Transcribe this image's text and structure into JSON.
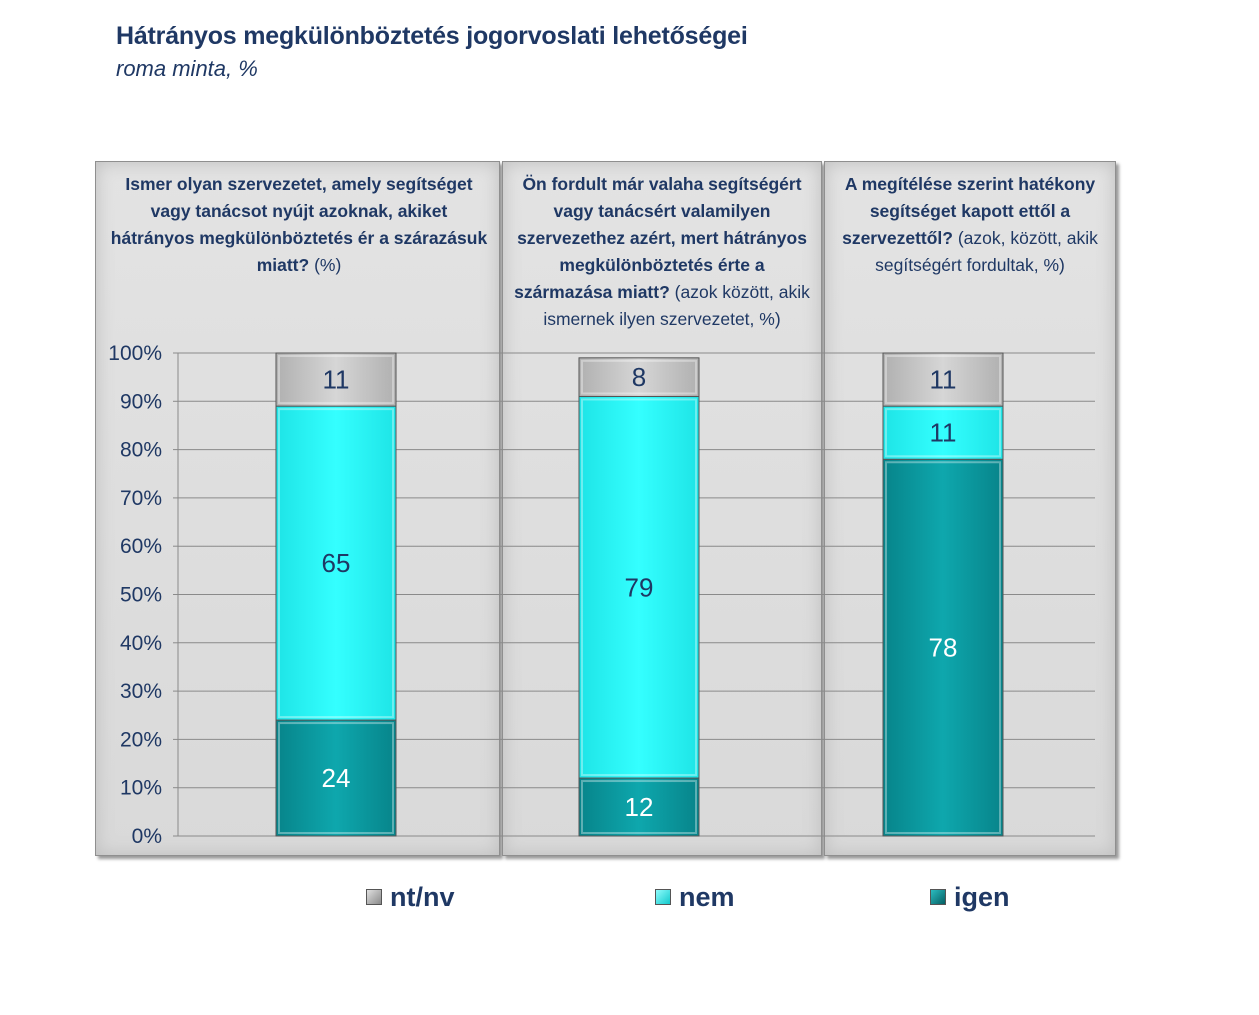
{
  "title": "Hátrányos megkülönböztetés jogorvoslati lehetőségei",
  "subtitle": "roma minta, %",
  "colors": {
    "igen": "#0b9aa0",
    "nem": "#2afcfc",
    "ntnv": "#c7c7c7",
    "text": "#1f3864"
  },
  "chart_data": {
    "type": "bar",
    "stacked": true,
    "ylim": [
      0,
      100
    ],
    "yticks": [
      "0%",
      "10%",
      "20%",
      "30%",
      "40%",
      "50%",
      "60%",
      "70%",
      "80%",
      "90%",
      "100%"
    ],
    "grid": true,
    "legend_position": "bottom",
    "categories": [
      {
        "bold": "Ismer olyan szervezetet, amely segítséget vagy tanácsot nyújt azoknak, akiket hátrányos megkülönböztetés ér a szárazásuk miatt?",
        "note": "(%)"
      },
      {
        "bold": "Ön fordult már valaha segítségért vagy tanácsért valamilyen szervezethez azért, mert hátrányos megkülönböztetés érte a származása miatt?",
        "note": "(azok között, akik ismernek ilyen szervezetet, %)"
      },
      {
        "bold": "A megítélése szerint hatékony segítséget kapott ettől a szervezettől?",
        "note": "(azok, között, akik segítségért fordultak, %)"
      }
    ],
    "series": [
      {
        "name": "igen",
        "values": [
          24,
          12,
          78
        ]
      },
      {
        "name": "nem",
        "values": [
          65,
          79,
          11
        ]
      },
      {
        "name": "nt/nv",
        "values": [
          11,
          8,
          11
        ]
      }
    ]
  }
}
